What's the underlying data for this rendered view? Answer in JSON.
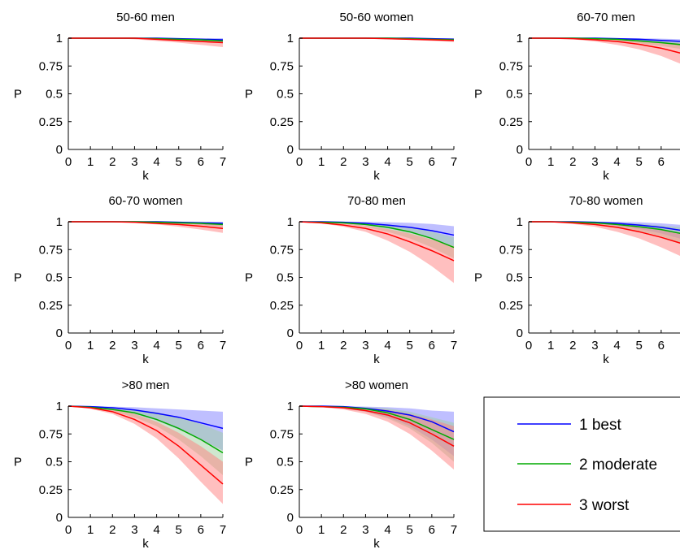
{
  "chart_data": {
    "type": "line",
    "xlabel": "k",
    "ylabel": "P",
    "xlim": [
      0,
      7
    ],
    "ylim": [
      0,
      1
    ],
    "xticks": [
      "0",
      "1",
      "2",
      "3",
      "4",
      "5",
      "6",
      "7"
    ],
    "yticks": [
      "0",
      "0.25",
      "0.5",
      "0.75",
      "1"
    ],
    "x": [
      0,
      1,
      2,
      3,
      4,
      5,
      6,
      7
    ],
    "legend": [
      {
        "name": "1 best",
        "color": "#0000ff",
        "fill": "#8080ff"
      },
      {
        "name": "2 moderate",
        "color": "#00aa00",
        "fill": "#a0d0a0"
      },
      {
        "name": "3 worst",
        "color": "#ff0000",
        "fill": "#ff8080"
      }
    ],
    "panels": [
      {
        "title": "50-60  men",
        "series": [
          {
            "values": [
              1,
              1,
              1,
              1,
              1,
              0.995,
              0.99,
              0.985
            ],
            "lower": [
              1,
              1,
              1,
              1,
              0.995,
              0.985,
              0.975,
              0.965
            ],
            "upper": [
              1,
              1,
              1,
              1,
              1,
              1,
              1,
              1
            ]
          },
          {
            "values": [
              1,
              1,
              1,
              1,
              0.995,
              0.99,
              0.985,
              0.975
            ],
            "lower": [
              1,
              1,
              1,
              0.995,
              0.99,
              0.98,
              0.97,
              0.955
            ],
            "upper": [
              1,
              1,
              1,
              1,
              1,
              1,
              0.995,
              0.99
            ]
          },
          {
            "values": [
              1,
              1,
              1,
              1,
              0.99,
              0.98,
              0.97,
              0.96
            ],
            "lower": [
              1,
              1,
              1,
              0.99,
              0.975,
              0.96,
              0.94,
              0.92
            ],
            "upper": [
              1,
              1,
              1,
              1,
              0.995,
              0.99,
              0.985,
              0.98
            ]
          }
        ]
      },
      {
        "title": "50-60  women",
        "series": [
          {
            "values": [
              1,
              1,
              1,
              1,
              1,
              1,
              0.995,
              0.99
            ],
            "lower": [
              1,
              1,
              1,
              1,
              1,
              0.995,
              0.99,
              0.98
            ],
            "upper": [
              1,
              1,
              1,
              1,
              1,
              1,
              1,
              1
            ]
          },
          {
            "values": [
              1,
              1,
              1,
              1,
              1,
              0.995,
              0.99,
              0.985
            ],
            "lower": [
              1,
              1,
              1,
              1,
              0.995,
              0.99,
              0.98,
              0.97
            ],
            "upper": [
              1,
              1,
              1,
              1,
              1,
              1,
              1,
              1
            ]
          },
          {
            "values": [
              1,
              1,
              1,
              1,
              0.995,
              0.99,
              0.985,
              0.98
            ],
            "lower": [
              1,
              1,
              1,
              0.995,
              0.99,
              0.985,
              0.975,
              0.965
            ],
            "upper": [
              1,
              1,
              1,
              1,
              1,
              0.995,
              0.99,
              0.99
            ]
          }
        ]
      },
      {
        "title": "60-70  men",
        "series": [
          {
            "values": [
              1,
              1,
              1,
              1,
              0.995,
              0.99,
              0.98,
              0.97
            ],
            "lower": [
              1,
              1,
              1,
              0.995,
              0.985,
              0.975,
              0.96,
              0.94
            ],
            "upper": [
              1,
              1,
              1,
              1,
              1,
              1,
              0.995,
              0.99
            ]
          },
          {
            "values": [
              1,
              1,
              1,
              0.995,
              0.99,
              0.975,
              0.96,
              0.94
            ],
            "lower": [
              1,
              1,
              0.995,
              0.99,
              0.975,
              0.955,
              0.93,
              0.9
            ],
            "upper": [
              1,
              1,
              1,
              1,
              0.995,
              0.99,
              0.98,
              0.97
            ]
          },
          {
            "values": [
              1,
              1,
              0.995,
              0.985,
              0.97,
              0.945,
              0.91,
              0.86
            ],
            "lower": [
              1,
              1,
              0.99,
              0.97,
              0.94,
              0.9,
              0.84,
              0.76
            ],
            "upper": [
              1,
              1,
              1,
              0.995,
              0.99,
              0.98,
              0.965,
              0.95
            ]
          }
        ]
      },
      {
        "title": "60-70  women",
        "series": [
          {
            "values": [
              1,
              1,
              1,
              1,
              1,
              0.995,
              0.99,
              0.985
            ],
            "lower": [
              1,
              1,
              1,
              1,
              0.995,
              0.985,
              0.975,
              0.965
            ],
            "upper": [
              1,
              1,
              1,
              1,
              1,
              1,
              1,
              1
            ]
          },
          {
            "values": [
              1,
              1,
              1,
              1,
              0.995,
              0.99,
              0.985,
              0.975
            ],
            "lower": [
              1,
              1,
              1,
              0.995,
              0.99,
              0.98,
              0.97,
              0.95
            ],
            "upper": [
              1,
              1,
              1,
              1,
              1,
              1,
              0.995,
              0.99
            ]
          },
          {
            "values": [
              1,
              1,
              1,
              0.995,
              0.985,
              0.975,
              0.96,
              0.94
            ],
            "lower": [
              1,
              1,
              1,
              0.99,
              0.975,
              0.955,
              0.93,
              0.9
            ],
            "upper": [
              1,
              1,
              1,
              1,
              0.995,
              0.99,
              0.98,
              0.97
            ]
          }
        ]
      },
      {
        "title": "70-80  men",
        "series": [
          {
            "values": [
              1,
              1,
              0.995,
              0.985,
              0.97,
              0.95,
              0.92,
              0.88
            ],
            "lower": [
              1,
              0.995,
              0.985,
              0.97,
              0.94,
              0.9,
              0.85,
              0.78
            ],
            "upper": [
              1,
              1,
              1,
              1,
              0.995,
              0.99,
              0.98,
              0.96
            ]
          },
          {
            "values": [
              1,
              0.995,
              0.99,
              0.975,
              0.95,
              0.91,
              0.85,
              0.77
            ],
            "lower": [
              1,
              0.99,
              0.98,
              0.955,
              0.91,
              0.85,
              0.77,
              0.67
            ],
            "upper": [
              1,
              1,
              0.995,
              0.99,
              0.975,
              0.95,
              0.91,
              0.86
            ]
          },
          {
            "values": [
              1,
              0.99,
              0.97,
              0.94,
              0.89,
              0.82,
              0.74,
              0.65
            ],
            "lower": [
              1,
              0.985,
              0.955,
              0.91,
              0.83,
              0.73,
              0.6,
              0.45
            ],
            "upper": [
              1,
              0.995,
              0.985,
              0.965,
              0.935,
              0.895,
              0.84,
              0.78
            ]
          }
        ]
      },
      {
        "title": "70-80  women",
        "series": [
          {
            "values": [
              1,
              1,
              1,
              0.995,
              0.985,
              0.97,
              0.95,
              0.92
            ],
            "lower": [
              1,
              1,
              0.995,
              0.985,
              0.965,
              0.935,
              0.895,
              0.84
            ],
            "upper": [
              1,
              1,
              1,
              1,
              1,
              0.995,
              0.985,
              0.97
            ]
          },
          {
            "values": [
              1,
              1,
              0.995,
              0.99,
              0.975,
              0.955,
              0.93,
              0.89
            ],
            "lower": [
              1,
              1,
              0.99,
              0.975,
              0.95,
              0.915,
              0.87,
              0.8
            ],
            "upper": [
              1,
              1,
              1,
              0.995,
              0.99,
              0.98,
              0.965,
              0.95
            ]
          },
          {
            "values": [
              1,
              1,
              0.99,
              0.975,
              0.95,
              0.91,
              0.86,
              0.8
            ],
            "lower": [
              1,
              0.995,
              0.98,
              0.955,
              0.91,
              0.85,
              0.77,
              0.68
            ],
            "upper": [
              1,
              1,
              0.995,
              0.99,
              0.975,
              0.955,
              0.925,
              0.9
            ]
          }
        ]
      },
      {
        "title": ">80  men",
        "series": [
          {
            "values": [
              1,
              0.995,
              0.985,
              0.965,
              0.935,
              0.9,
              0.85,
              0.8
            ],
            "lower": [
              1,
              0.99,
              0.97,
              0.93,
              0.87,
              0.79,
              0.7,
              0.6
            ],
            "upper": [
              1,
              1,
              0.995,
              0.99,
              0.98,
              0.97,
              0.96,
              0.95
            ]
          },
          {
            "values": [
              1,
              0.99,
              0.97,
              0.94,
              0.88,
              0.8,
              0.7,
              0.58
            ],
            "lower": [
              1,
              0.985,
              0.955,
              0.9,
              0.82,
              0.7,
              0.55,
              0.38
            ],
            "upper": [
              1,
              0.995,
              0.985,
              0.97,
              0.945,
              0.9,
              0.84,
              0.76
            ]
          },
          {
            "values": [
              1,
              0.985,
              0.95,
              0.88,
              0.78,
              0.64,
              0.47,
              0.3
            ],
            "lower": [
              1,
              0.975,
              0.93,
              0.84,
              0.71,
              0.53,
              0.32,
              0.12
            ],
            "upper": [
              1,
              0.995,
              0.975,
              0.93,
              0.86,
              0.76,
              0.64,
              0.5
            ]
          }
        ]
      },
      {
        "title": ">80  women",
        "series": [
          {
            "values": [
              1,
              1,
              0.995,
              0.98,
              0.955,
              0.92,
              0.86,
              0.77
            ],
            "lower": [
              1,
              0.995,
              0.98,
              0.95,
              0.9,
              0.82,
              0.7,
              0.55
            ],
            "upper": [
              1,
              1,
              1,
              0.995,
              0.99,
              0.98,
              0.96,
              0.95
            ]
          },
          {
            "values": [
              1,
              0.995,
              0.99,
              0.975,
              0.94,
              0.88,
              0.79,
              0.7
            ],
            "lower": [
              1,
              0.99,
              0.98,
              0.95,
              0.89,
              0.8,
              0.67,
              0.5
            ],
            "upper": [
              1,
              1,
              0.995,
              0.99,
              0.98,
              0.95,
              0.9,
              0.85
            ]
          },
          {
            "values": [
              1,
              0.995,
              0.985,
              0.96,
              0.92,
              0.85,
              0.75,
              0.64
            ],
            "lower": [
              1,
              0.99,
              0.97,
              0.93,
              0.86,
              0.75,
              0.6,
              0.43
            ],
            "upper": [
              1,
              1,
              0.995,
              0.985,
              0.965,
              0.93,
              0.88,
              0.82
            ]
          }
        ]
      }
    ]
  }
}
